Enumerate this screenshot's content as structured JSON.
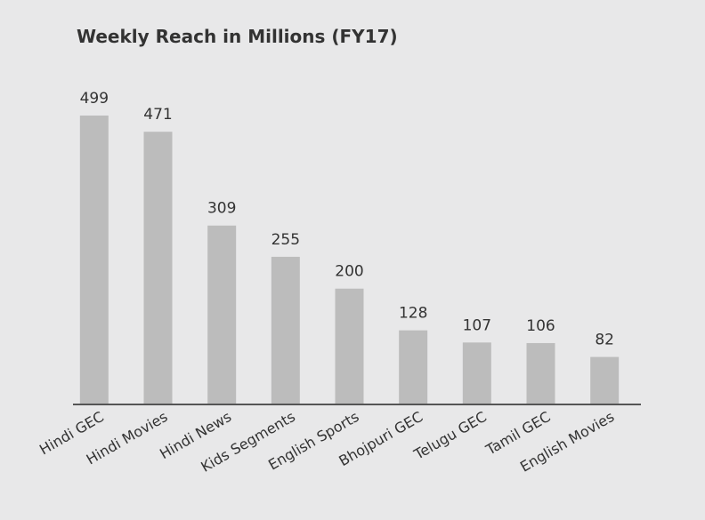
{
  "chart_data": {
    "type": "bar",
    "title": "Weekly Reach in Millions (FY17)",
    "categories": [
      "Hindi GEC",
      "Hindi Movies",
      "Hindi News",
      "Kids Segments",
      "English Sports",
      "Bhojpuri GEC",
      "Telugu GEC",
      "Tamil GEC",
      "English Movies"
    ],
    "values": [
      499,
      471,
      309,
      255,
      200,
      128,
      107,
      106,
      82
    ],
    "color": "#bcbcbc"
  }
}
